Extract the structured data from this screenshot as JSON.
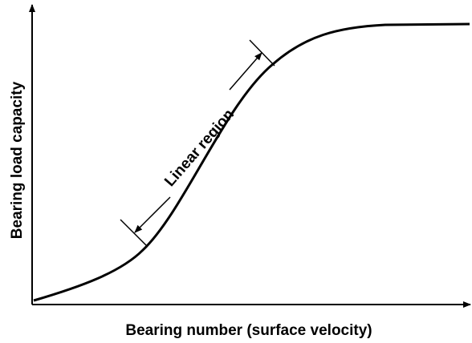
{
  "axes": {
    "x_label": "Bearing number (surface velocity)",
    "y_label": "Bearing load capacity"
  },
  "annotation": "Linear region"
}
